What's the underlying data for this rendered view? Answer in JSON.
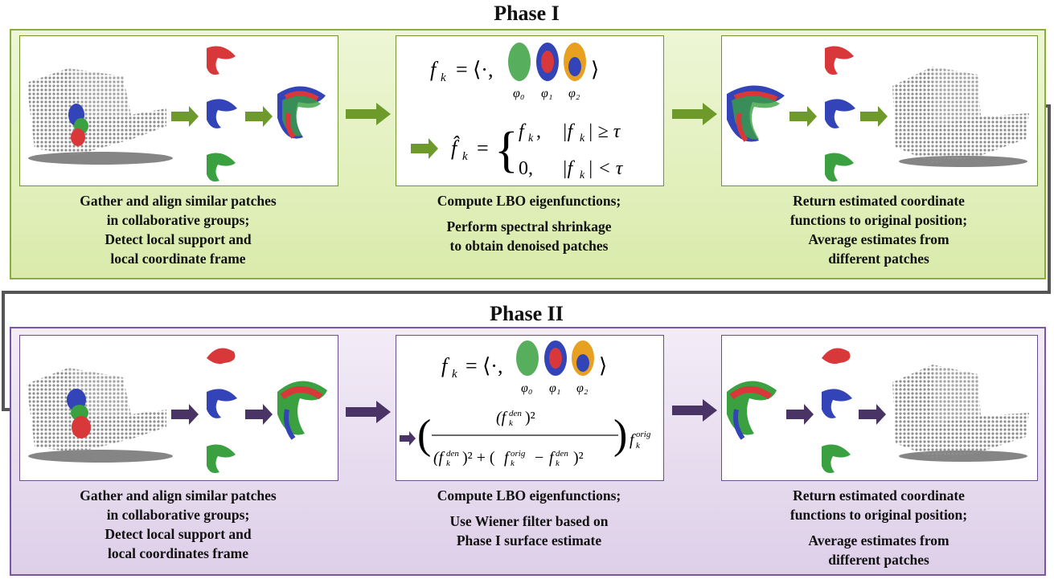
{
  "phase1": {
    "title": "Phase I",
    "col1": [
      "Gather and align similar patches",
      "in collaborative groups;",
      "Detect local support and",
      "local coordinate frame"
    ],
    "col2": [
      "Compute LBO eigenfunctions;",
      "Perform spectral shrinkage",
      "to obtain denoised patches"
    ],
    "col3": [
      "Return estimated coordinate",
      "functions to original position;",
      "Average estimates from",
      "different patches"
    ]
  },
  "phase2": {
    "title": "Phase II",
    "col1": [
      "Gather and align similar patches",
      "in collaborative groups;",
      "Detect local support and",
      "local coordinates frame"
    ],
    "col2": [
      "Compute LBO eigenfunctions;",
      "Use Wiener filter based on",
      "Phase I surface estimate"
    ],
    "col3": [
      "Return estimated coordinate",
      "functions to original position;",
      "Average estimates from",
      "different patches"
    ]
  },
  "equations": {
    "fk": "f",
    "k": "k",
    "phi0": "φ0",
    "phi1": "φ1",
    "phi2": "φ2",
    "fk_case1": "f",
    "cond1": "|f| ≥ τ",
    "cond2": "|f| < τ",
    "zero": "0,",
    "den": "den",
    "orig": "orig"
  },
  "colors": {
    "phase1_arrow": "#6e9a2c",
    "phase2_arrow": "#4a3466",
    "red": "#d8383a",
    "blue": "#3344b8",
    "green": "#3aa040",
    "gray": "#9c9c9c"
  }
}
